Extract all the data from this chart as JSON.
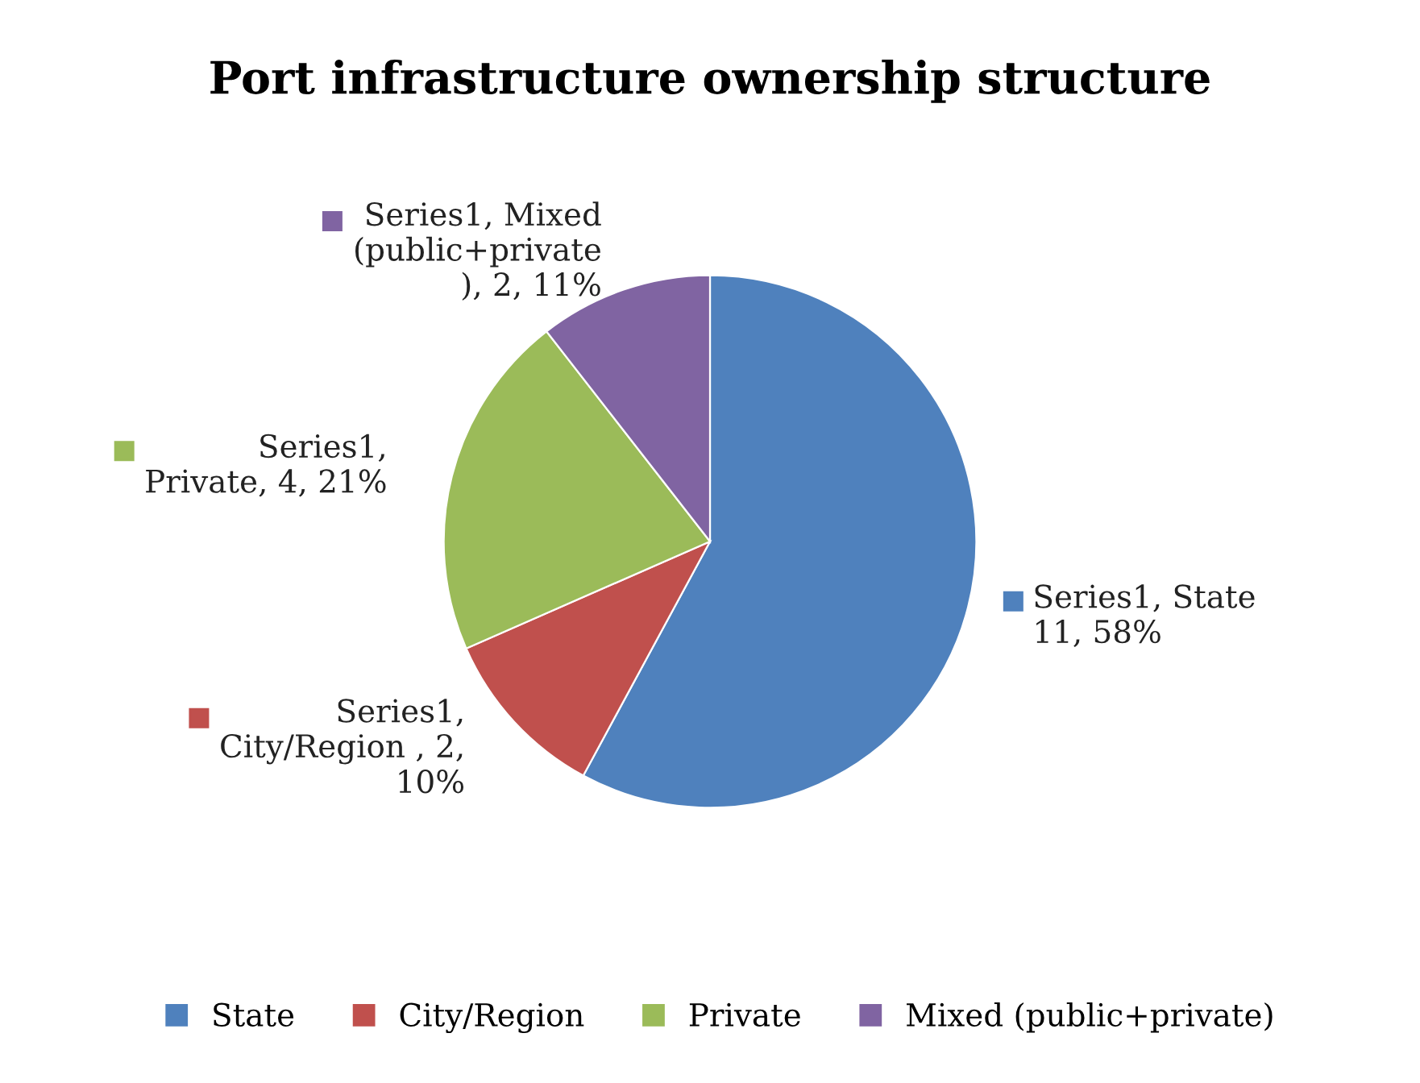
{
  "chart_data": {
    "type": "pie",
    "title": "Port infrastructure ownership structure",
    "categories": [
      "State",
      "City/Region",
      "Private",
      "Mixed (public+private)"
    ],
    "values": [
      11,
      2,
      4,
      2
    ],
    "colors": [
      "#4f81bd",
      "#c0504d",
      "#9bbb59",
      "#8064a2"
    ],
    "value_labels": [
      "Series1, State\n11, 58%",
      "Series1,\nCity/Region , 2,\n10%",
      "Series1,\nPrivate, 4, 21%",
      "Series1, Mixed\n(public+private\n), 2, 11%"
    ],
    "legend": "bottom"
  }
}
